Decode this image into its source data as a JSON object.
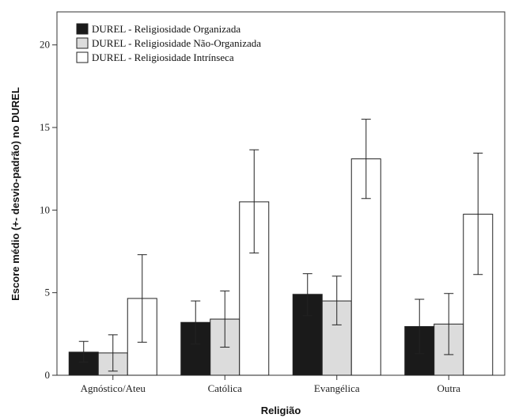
{
  "chart_data": {
    "type": "bar",
    "title": "",
    "xlabel": "Religião",
    "ylabel": "Escore médio (+- desvio-padrão) no DUREL",
    "categories": [
      "Agnóstico/Ateu",
      "Católica",
      "Evangélica",
      "Outra"
    ],
    "ylim": [
      0,
      22
    ],
    "yticks": [
      0,
      5,
      10,
      15,
      20
    ],
    "grid": false,
    "legend_position": "top-left",
    "series": [
      {
        "name": "DUREL - Religiosidade Organizada",
        "color": "#1a1a1a",
        "values": [
          1.4,
          3.2,
          4.9,
          2.95
        ],
        "error_low": [
          0.8,
          1.9,
          3.6,
          1.3
        ],
        "error_high": [
          2.05,
          4.5,
          6.15,
          4.6
        ]
      },
      {
        "name": "DUREL - Religiosidade Não-Organizada",
        "color": "#dcdcdc",
        "values": [
          1.35,
          3.4,
          4.5,
          3.1
        ],
        "error_low": [
          0.25,
          1.7,
          3.05,
          1.25
        ],
        "error_high": [
          2.45,
          5.1,
          6.0,
          4.95
        ]
      },
      {
        "name": "DUREL - Religiosidade Intrínseca",
        "color": "#ffffff",
        "values": [
          4.65,
          10.5,
          13.1,
          9.75
        ],
        "error_low": [
          2.0,
          7.4,
          10.7,
          6.1
        ],
        "error_high": [
          7.3,
          13.65,
          15.5,
          13.45
        ]
      }
    ]
  }
}
